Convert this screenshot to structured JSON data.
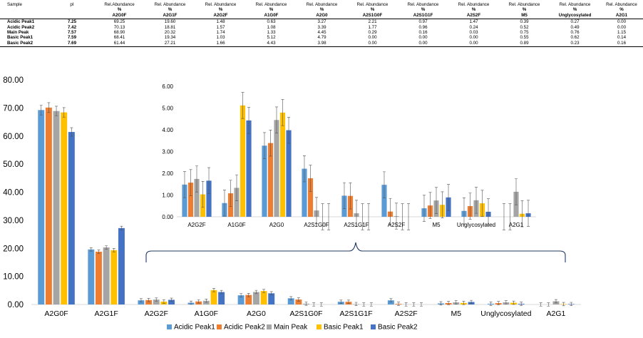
{
  "table": {
    "headers": [
      {
        "line1": "Sample",
        "line2": "",
        "line3": ""
      },
      {
        "line1": "pI",
        "line2": "",
        "line3": ""
      },
      {
        "line1": "Rel.Abundance",
        "line2": "%",
        "line3": "A2G0F"
      },
      {
        "line1": "Rel. Abundance",
        "line2": "%",
        "line3": "A2G1F"
      },
      {
        "line1": "Rel. Abundance",
        "line2": "%",
        "line3": "A2G2F"
      },
      {
        "line1": "Rel. Abundance",
        "line2": "%",
        "line3": "A1G0F"
      },
      {
        "line1": "Rel. Abundance",
        "line2": "%",
        "line3": "A2G0"
      },
      {
        "line1": "Rel. Abundance",
        "line2": "%",
        "line3": "A2S1G0F"
      },
      {
        "line1": "Rel. Abundance",
        "line2": "%",
        "line3": "A2S1G1F"
      },
      {
        "line1": "Rel. Abundance",
        "line2": "%",
        "line3": "A2S2F"
      },
      {
        "line1": "Rel. Abundance",
        "line2": "%",
        "line3": "M5"
      },
      {
        "line1": "Rel. Abundance",
        "line2": "%",
        "line3": "Unglycosylated"
      },
      {
        "line1": "Rel. Abundance",
        "line2": "%",
        "line3": "A2G1"
      }
    ],
    "rows": [
      [
        "Acidic Peak1",
        "7.25",
        "69.25",
        "19.60",
        "1.48",
        "0.63",
        "3.27",
        "2.21",
        "0.97",
        "1.47",
        "0.39",
        "0.27",
        "0.00"
      ],
      [
        "Acidic Peak2",
        "7.42",
        "70.13",
        "18.81",
        "1.57",
        "1.08",
        "3.39",
        "1.77",
        "0.96",
        "0.24",
        "0.52",
        "0.49",
        "0.00"
      ],
      [
        "Main Peak",
        "7.57",
        "68.90",
        "20.32",
        "1.74",
        "1.33",
        "4.45",
        "0.29",
        "0.16",
        "0.03",
        "0.75",
        "0.76",
        "1.15"
      ],
      [
        "Basic Peak1",
        "7.59",
        "68.41",
        "19.34",
        "1.03",
        "5.12",
        "4.79",
        "0.00",
        "0.00",
        "0.00",
        "0.55",
        "0.62",
        "0.14"
      ],
      [
        "Basic Peak2",
        "7.69",
        "61.44",
        "27.21",
        "1.66",
        "4.43",
        "3.98",
        "0.00",
        "0.00",
        "0.00",
        "0.89",
        "0.23",
        "0.16"
      ]
    ]
  },
  "chart_data": [
    {
      "type": "bar",
      "name": "main",
      "categories": [
        "A2G0F",
        "A2G1F",
        "A2G2F",
        "A1G0F",
        "A2G0",
        "A2S1G0F",
        "A2S1G1F",
        "A2S2F",
        "M5",
        "Unglycosylated",
        "A2G1"
      ],
      "ylim": [
        0,
        80
      ],
      "yticks": [
        "0.00",
        "10.00",
        "20.00",
        "30.00",
        "40.00",
        "50.00",
        "60.00",
        "70.00",
        "80.00"
      ],
      "series": [
        {
          "name": "Acidic Peak1",
          "color": "#5B9BD5",
          "values": [
            69.25,
            19.6,
            1.48,
            0.63,
            3.27,
            2.21,
            0.97,
            1.47,
            0.39,
            0.27,
            0.0
          ]
        },
        {
          "name": "Acidic Peak2",
          "color": "#ED7D31",
          "values": [
            70.13,
            18.81,
            1.57,
            1.08,
            3.39,
            1.77,
            0.96,
            0.24,
            0.52,
            0.49,
            0.0
          ]
        },
        {
          "name": "Main Peak",
          "color": "#A5A5A5",
          "values": [
            68.9,
            20.32,
            1.74,
            1.33,
            4.45,
            0.29,
            0.16,
            0.03,
            0.75,
            0.76,
            1.15
          ]
        },
        {
          "name": "Basic Peak1",
          "color": "#FFC000",
          "values": [
            68.41,
            19.34,
            1.03,
            5.12,
            4.79,
            0.0,
            0.0,
            0.0,
            0.55,
            0.62,
            0.14
          ]
        },
        {
          "name": "Basic Peak2",
          "color": "#4472C4",
          "values": [
            61.44,
            27.21,
            1.66,
            4.43,
            3.98,
            0.0,
            0.0,
            0.0,
            0.89,
            0.23,
            0.16
          ]
        }
      ],
      "legend": "bottom"
    },
    {
      "type": "bar",
      "name": "inset",
      "categories": [
        "A2G2F",
        "A1G0F",
        "A2G0",
        "A2S1G0F",
        "A2S1G1F",
        "A2S2F",
        "M5",
        "Unglycosylated",
        "A2G1"
      ],
      "ylim": [
        0,
        6
      ],
      "yticks": [
        "0.00",
        "1.00",
        "2.00",
        "3.00",
        "4.00",
        "5.00",
        "6.00"
      ],
      "series": [
        {
          "name": "Acidic Peak1",
          "color": "#5B9BD5",
          "values": [
            1.48,
            0.63,
            3.27,
            2.21,
            0.97,
            1.47,
            0.39,
            0.27,
            0.0
          ]
        },
        {
          "name": "Acidic Peak2",
          "color": "#ED7D31",
          "values": [
            1.57,
            1.08,
            3.39,
            1.77,
            0.96,
            0.24,
            0.52,
            0.49,
            0.0
          ]
        },
        {
          "name": "Main Peak",
          "color": "#A5A5A5",
          "values": [
            1.74,
            1.33,
            4.45,
            0.29,
            0.16,
            0.03,
            0.75,
            0.76,
            1.15
          ]
        },
        {
          "name": "Basic Peak1",
          "color": "#FFC000",
          "values": [
            1.03,
            5.12,
            4.79,
            0.0,
            0.0,
            0.0,
            0.55,
            0.62,
            0.14
          ]
        },
        {
          "name": "Basic Peak2",
          "color": "#4472C4",
          "values": [
            1.66,
            4.43,
            3.98,
            0.0,
            0.0,
            0.0,
            0.89,
            0.23,
            0.16
          ]
        }
      ]
    }
  ]
}
